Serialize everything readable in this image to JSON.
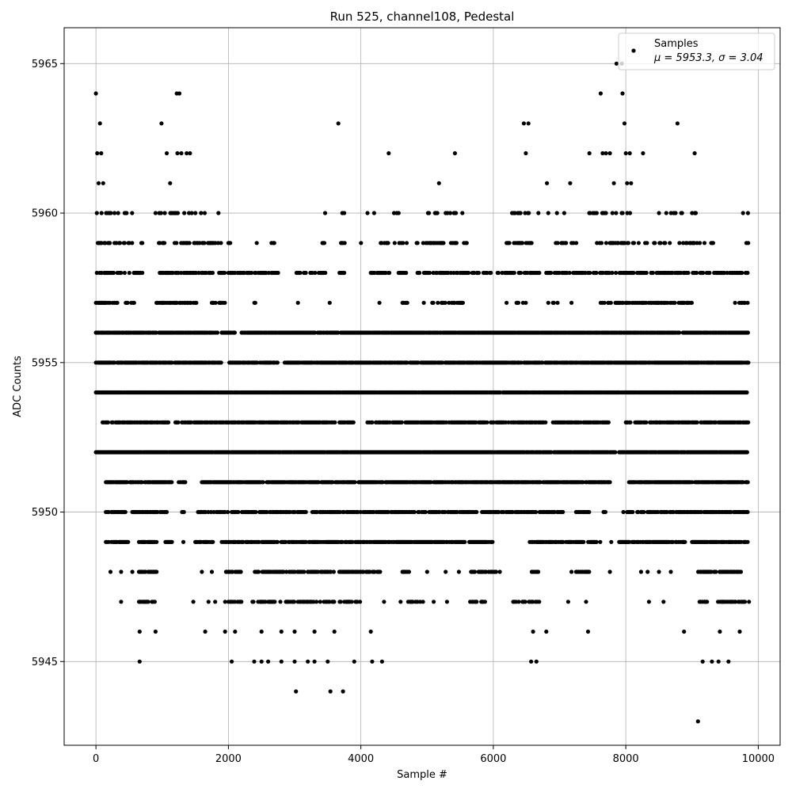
{
  "chart_data": {
    "type": "scatter",
    "title": "Run 525, channel108, Pedestal",
    "xlabel": "Sample #",
    "ylabel": "ADC Counts",
    "xlim": [
      -480,
      10330
    ],
    "ylim": [
      5942.2,
      5966.2
    ],
    "xticks": [
      0,
      2000,
      4000,
      6000,
      8000,
      10000
    ],
    "yticks": [
      5945,
      5950,
      5955,
      5960,
      5965
    ],
    "grid": true,
    "legend_position": "top-right",
    "marker_color": "#000000",
    "series": [
      {
        "name": "Samples",
        "label_line2": "μ = 5953.3, σ = 3.04",
        "sample_count": 9850,
        "mean": 5953.3,
        "sigma": 3.04,
        "points": [
          [
            0,
            5964
          ],
          [
            20,
            5962
          ],
          [
            40,
            5961
          ],
          [
            60,
            5963
          ],
          [
            80,
            5962
          ],
          [
            110,
            5961
          ],
          [
            990,
            5963
          ],
          [
            1120,
            5961
          ],
          [
            1070,
            5962
          ],
          [
            1220,
            5964
          ],
          [
            1260,
            5964
          ],
          [
            1230,
            5962
          ],
          [
            1290,
            5962
          ],
          [
            1370,
            5962
          ],
          [
            1420,
            5962
          ],
          [
            3660,
            5963
          ],
          [
            4420,
            5962
          ],
          [
            5180,
            5961
          ],
          [
            5420,
            5962
          ],
          [
            6460,
            5963
          ],
          [
            6530,
            5963
          ],
          [
            6490,
            5962
          ],
          [
            6810,
            5961
          ],
          [
            7160,
            5961
          ],
          [
            7450,
            5962
          ],
          [
            7620,
            5964
          ],
          [
            7650,
            5962
          ],
          [
            7700,
            5962
          ],
          [
            7760,
            5962
          ],
          [
            7820,
            5961
          ],
          [
            7860,
            5965
          ],
          [
            7940,
            5965
          ],
          [
            7950,
            5964
          ],
          [
            7980,
            5963
          ],
          [
            8000,
            5962
          ],
          [
            8020,
            5961
          ],
          [
            8080,
            5961
          ],
          [
            8060,
            5962
          ],
          [
            8260,
            5962
          ],
          [
            8780,
            5963
          ],
          [
            9040,
            5962
          ],
          [
            660,
            5945
          ],
          [
            2050,
            5945
          ],
          [
            2390,
            5945
          ],
          [
            2500,
            5945
          ],
          [
            2600,
            5945
          ],
          [
            2800,
            5945
          ],
          [
            3000,
            5945
          ],
          [
            3200,
            5945
          ],
          [
            3300,
            5945
          ],
          [
            3500,
            5945
          ],
          [
            3900,
            5945
          ],
          [
            4170,
            5945
          ],
          [
            4320,
            5945
          ],
          [
            6570,
            5945
          ],
          [
            6650,
            5945
          ],
          [
            9160,
            5945
          ],
          [
            9300,
            5945
          ],
          [
            9400,
            5945
          ],
          [
            9550,
            5945
          ],
          [
            3020,
            5944
          ],
          [
            3540,
            5944
          ],
          [
            3730,
            5944
          ],
          [
            9090,
            5943
          ],
          [
            660,
            5946
          ],
          [
            900,
            5946
          ],
          [
            1650,
            5946
          ],
          [
            1950,
            5946
          ],
          [
            2100,
            5946
          ],
          [
            2500,
            5946
          ],
          [
            2800,
            5946
          ],
          [
            3000,
            5946
          ],
          [
            3300,
            5946
          ],
          [
            3600,
            5946
          ],
          [
            4150,
            5946
          ],
          [
            6600,
            5946
          ],
          [
            6800,
            5946
          ],
          [
            7430,
            5946
          ],
          [
            8880,
            5946
          ],
          [
            9420,
            5946
          ],
          [
            9720,
            5946
          ],
          [
            380,
            5947
          ],
          [
            750,
            5947
          ],
          [
            1470,
            5947
          ],
          [
            1700,
            5947
          ],
          [
            1800,
            5947
          ],
          [
            1950,
            5947
          ],
          [
            4350,
            5947
          ],
          [
            4600,
            5947
          ],
          [
            5100,
            5947
          ],
          [
            5300,
            5947
          ],
          [
            7130,
            5947
          ],
          [
            7400,
            5947
          ],
          [
            8350,
            5947
          ],
          [
            8570,
            5947
          ],
          [
            9860,
            5947
          ],
          [
            220,
            5948
          ],
          [
            380,
            5948
          ],
          [
            550,
            5948
          ],
          [
            1600,
            5948
          ],
          [
            1750,
            5948
          ],
          [
            5000,
            5948
          ],
          [
            5280,
            5948
          ],
          [
            5480,
            5948
          ],
          [
            7760,
            5948
          ],
          [
            8230,
            5948
          ],
          [
            8330,
            5948
          ],
          [
            8500,
            5948
          ],
          [
            8680,
            5948
          ],
          [
            1320,
            5949
          ],
          [
            1620,
            5949
          ],
          [
            7780,
            5949
          ],
          [
            8870,
            5949
          ],
          [
            3050,
            5957
          ],
          [
            3530,
            5957
          ],
          [
            4280,
            5957
          ],
          [
            4700,
            5957
          ],
          [
            4950,
            5957
          ],
          [
            6200,
            5957
          ],
          [
            6830,
            5957
          ],
          [
            7180,
            5957
          ],
          [
            8920,
            5957
          ],
          [
            9650,
            5957
          ],
          [
            1850,
            5960
          ],
          [
            3460,
            5960
          ],
          [
            4100,
            5960
          ],
          [
            4200,
            5960
          ],
          [
            5120,
            5960
          ],
          [
            6680,
            5960
          ],
          [
            6830,
            5960
          ],
          [
            6960,
            5960
          ],
          [
            7070,
            5960
          ],
          [
            9050,
            5960
          ],
          [
            9770,
            5960
          ]
        ],
        "bands": [
          {
            "y": 5960,
            "segments": [
              [
                0,
                600
              ],
              [
                900,
                1650
              ],
              [
                3650,
                3750
              ],
              [
                4500,
                4600
              ],
              [
                5000,
                5550
              ],
              [
                6270,
                6550
              ],
              [
                7420,
                8080
              ],
              [
                8500,
                8850
              ],
              [
                9000,
                9100
              ],
              [
                9830,
                9860
              ]
            ],
            "density": 0.35
          },
          {
            "y": 5959,
            "segments": [
              [
                0,
                700
              ],
              [
                950,
                1900
              ],
              [
                2000,
                2050
              ],
              [
                2400,
                2450
              ],
              [
                2650,
                2700
              ],
              [
                3420,
                3460
              ],
              [
                3700,
                3760
              ],
              [
                3960,
                4010
              ],
              [
                4300,
                4700
              ],
              [
                4800,
                5600
              ],
              [
                6200,
                6600
              ],
              [
                6930,
                7260
              ],
              [
                7550,
                8330
              ],
              [
                8370,
                8720
              ],
              [
                8810,
                9200
              ],
              [
                9290,
                9330
              ],
              [
                9820,
                9850
              ]
            ],
            "density": 0.45
          },
          {
            "y": 5958,
            "segments": [
              [
                0,
                700
              ],
              [
                950,
                1950
              ],
              [
                2000,
                2350
              ],
              [
                2400,
                2750
              ],
              [
                3000,
                3500
              ],
              [
                3650,
                3750
              ],
              [
                4150,
                4700
              ],
              [
                4800,
                6000
              ],
              [
                6050,
                6700
              ],
              [
                6800,
                9850
              ]
            ],
            "density": 0.55
          },
          {
            "y": 5957,
            "segments": [
              [
                0,
                400
              ],
              [
                450,
                600
              ],
              [
                700,
                750
              ],
              [
                900,
                1550
              ],
              [
                1750,
                1950
              ],
              [
                2350,
                2450
              ],
              [
                4600,
                4750
              ],
              [
                5050,
                5550
              ],
              [
                6350,
                6500
              ],
              [
                6900,
                7000
              ],
              [
                7550,
                8750
              ],
              [
                8800,
                9000
              ],
              [
                9700,
                9850
              ]
            ],
            "density": 0.5
          },
          {
            "y": 5956,
            "segments": [
              [
                0,
                1850
              ],
              [
                1900,
                2100
              ],
              [
                2200,
                9850
              ]
            ],
            "density": 0.9
          },
          {
            "y": 5955,
            "segments": [
              [
                0,
                1900
              ],
              [
                2000,
                2750
              ],
              [
                2850,
                9850
              ]
            ],
            "density": 0.9
          },
          {
            "y": 5954,
            "segments": [
              [
                0,
                9850
              ]
            ],
            "density": 0.95
          },
          {
            "y": 5953,
            "segments": [
              [
                100,
                1100
              ],
              [
                1200,
                3900
              ],
              [
                4100,
                6800
              ],
              [
                6900,
                7750
              ],
              [
                8000,
                9850
              ]
            ],
            "density": 0.8
          },
          {
            "y": 5952,
            "segments": [
              [
                0,
                7850
              ],
              [
                7900,
                9850
              ]
            ],
            "density": 0.95
          },
          {
            "y": 5951,
            "segments": [
              [
                150,
                1150
              ],
              [
                1250,
                1350
              ],
              [
                1600,
                7760
              ],
              [
                8050,
                9850
              ]
            ],
            "density": 0.85
          },
          {
            "y": 5950,
            "segments": [
              [
                150,
                450
              ],
              [
                550,
                1100
              ],
              [
                1300,
                1350
              ],
              [
                1500,
                2000
              ],
              [
                2050,
                6650
              ],
              [
                6700,
                7050
              ],
              [
                7250,
                7450
              ],
              [
                7650,
                7700
              ],
              [
                7950,
                9850
              ]
            ],
            "density": 0.7
          },
          {
            "y": 5949,
            "segments": [
              [
                150,
                500
              ],
              [
                650,
                950
              ],
              [
                1050,
                1150
              ],
              [
                1500,
                1800
              ],
              [
                1900,
                6000
              ],
              [
                6550,
                7650
              ],
              [
                7900,
                8900
              ],
              [
                9000,
                9850
              ]
            ],
            "density": 0.75
          },
          {
            "y": 5948,
            "segments": [
              [
                650,
                950
              ],
              [
                1950,
                2200
              ],
              [
                2400,
                4300
              ],
              [
                4600,
                4750
              ],
              [
                5650,
                6100
              ],
              [
                6580,
                6700
              ],
              [
                7180,
                7450
              ],
              [
                9080,
                9750
              ]
            ],
            "density": 0.65
          },
          {
            "y": 5947,
            "segments": [
              [
                650,
                900
              ],
              [
                2000,
                2200
              ],
              [
                2350,
                4000
              ],
              [
                4700,
                4950
              ],
              [
                5650,
                5900
              ],
              [
                6300,
                6700
              ],
              [
                9100,
                9250
              ],
              [
                9350,
                9800
              ]
            ],
            "density": 0.55
          }
        ]
      }
    ]
  }
}
